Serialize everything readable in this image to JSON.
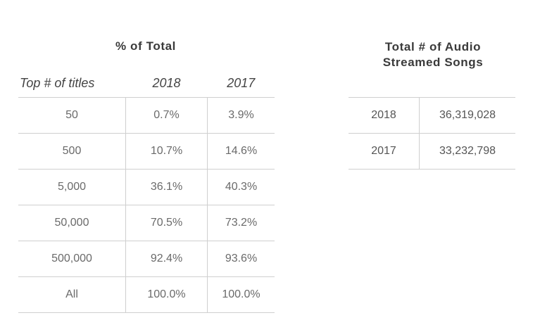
{
  "left_table": {
    "title": "% of Total",
    "headers": [
      "Top # of titles",
      "2018",
      "2017"
    ],
    "rows": [
      [
        "50",
        "0.7%",
        "3.9%"
      ],
      [
        "500",
        "10.7%",
        "14.6%"
      ],
      [
        "5,000",
        "36.1%",
        "40.3%"
      ],
      [
        "50,000",
        "70.5%",
        "73.2%"
      ],
      [
        "500,000",
        "92.4%",
        "93.6%"
      ],
      [
        "All",
        "100.0%",
        "100.0%"
      ]
    ]
  },
  "right_table": {
    "title_line1": "Total # of Audio",
    "title_line2": "Streamed Songs",
    "rows": [
      [
        "2018",
        "36,319,028"
      ],
      [
        "2017",
        "33,232,798"
      ]
    ]
  }
}
